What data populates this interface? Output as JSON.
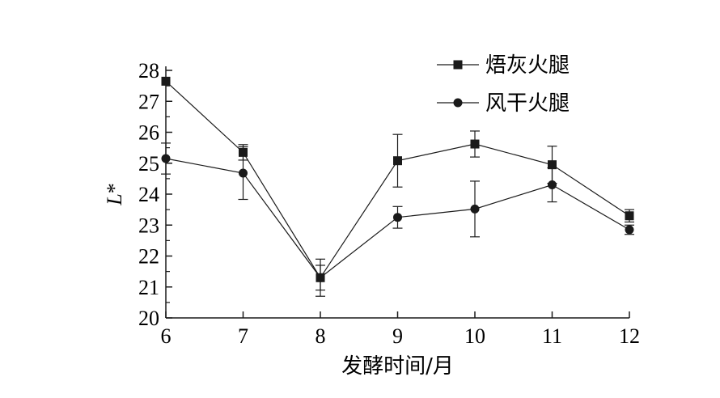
{
  "chart_data": {
    "type": "line",
    "x": [
      6,
      7,
      8,
      9,
      10,
      11,
      12
    ],
    "xlabel": "发酵时间/月",
    "ylabel": "L*",
    "xlim": [
      6,
      12
    ],
    "ylim": [
      20,
      28
    ],
    "xticks": [
      6,
      7,
      8,
      9,
      10,
      11,
      12
    ],
    "yticks": [
      20,
      21,
      22,
      23,
      24,
      25,
      26,
      27,
      28
    ],
    "grid": false,
    "legend_position": "top-right",
    "series": [
      {
        "name": "焐灰火腿",
        "marker": "square",
        "values": [
          27.65,
          25.35,
          21.3,
          25.08,
          25.62,
          24.95,
          23.3
        ],
        "errors": [
          0.0,
          0.25,
          0.6,
          0.85,
          0.42,
          0.6,
          0.2
        ]
      },
      {
        "name": "风干火腿",
        "marker": "circle",
        "values": [
          25.15,
          24.68,
          21.3,
          23.25,
          23.52,
          24.3,
          22.85
        ],
        "errors": [
          0.5,
          0.85,
          0.4,
          0.35,
          0.9,
          0.55,
          0.15
        ]
      }
    ],
    "color": "#1a1a1a"
  }
}
